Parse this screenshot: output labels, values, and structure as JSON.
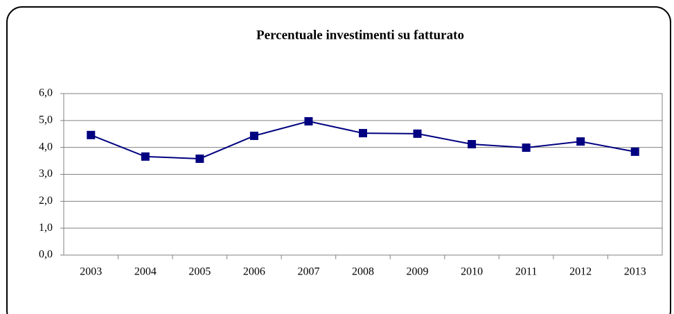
{
  "chart_data": {
    "type": "line",
    "title": "Percentuale investimenti su fatturato",
    "categories": [
      "2003",
      "2004",
      "2005",
      "2006",
      "2007",
      "2008",
      "2009",
      "2010",
      "2011",
      "2012",
      "2013"
    ],
    "series": [
      {
        "name": "Percentuale investimenti su fatturato",
        "color": "#000080",
        "values": [
          4.46,
          3.66,
          3.58,
          4.43,
          4.97,
          4.53,
          4.51,
          4.12,
          3.99,
          4.22,
          3.84
        ]
      }
    ],
    "ylim": [
      0,
      6
    ],
    "yticks": [
      {
        "value": 0,
        "label": "0,0"
      },
      {
        "value": 1,
        "label": "1,0"
      },
      {
        "value": 2,
        "label": "2,0"
      },
      {
        "value": 3,
        "label": "3,0"
      },
      {
        "value": 4,
        "label": "4,0"
      },
      {
        "value": 5,
        "label": "5,0"
      },
      {
        "value": 6,
        "label": "6,0"
      }
    ],
    "grid": true
  }
}
